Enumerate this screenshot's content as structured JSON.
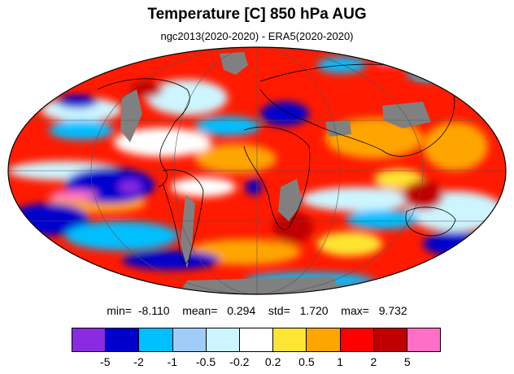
{
  "title": "Temperature [C] 850 hPa AUG",
  "subtitle": "ngc2013(2020-2020) - ERA5(2020-2020)",
  "stats": {
    "min_label": "min=",
    "min_value": "-8.110",
    "mean_label": "mean=",
    "mean_value": "0.294",
    "std_label": "std=",
    "std_value": "1.720",
    "max_label": "max=",
    "max_value": "9.732"
  },
  "colorbar": {
    "colors": [
      "#8a2be2",
      "#0000cd",
      "#00bfff",
      "#a0cdf8",
      "#cdf5ff",
      "#ffffff",
      "#ffe533",
      "#ffa500",
      "#ff0000",
      "#c00000",
      "#ff6ec7"
    ],
    "labels": [
      "-5",
      "-2",
      "-1",
      "-0.5",
      "-0.2",
      "0.2",
      "0.5",
      "1",
      "2",
      "5"
    ]
  },
  "map": {
    "projection": "Mollweide",
    "missing_color": "#808080",
    "coastline_color": "#000000"
  }
}
